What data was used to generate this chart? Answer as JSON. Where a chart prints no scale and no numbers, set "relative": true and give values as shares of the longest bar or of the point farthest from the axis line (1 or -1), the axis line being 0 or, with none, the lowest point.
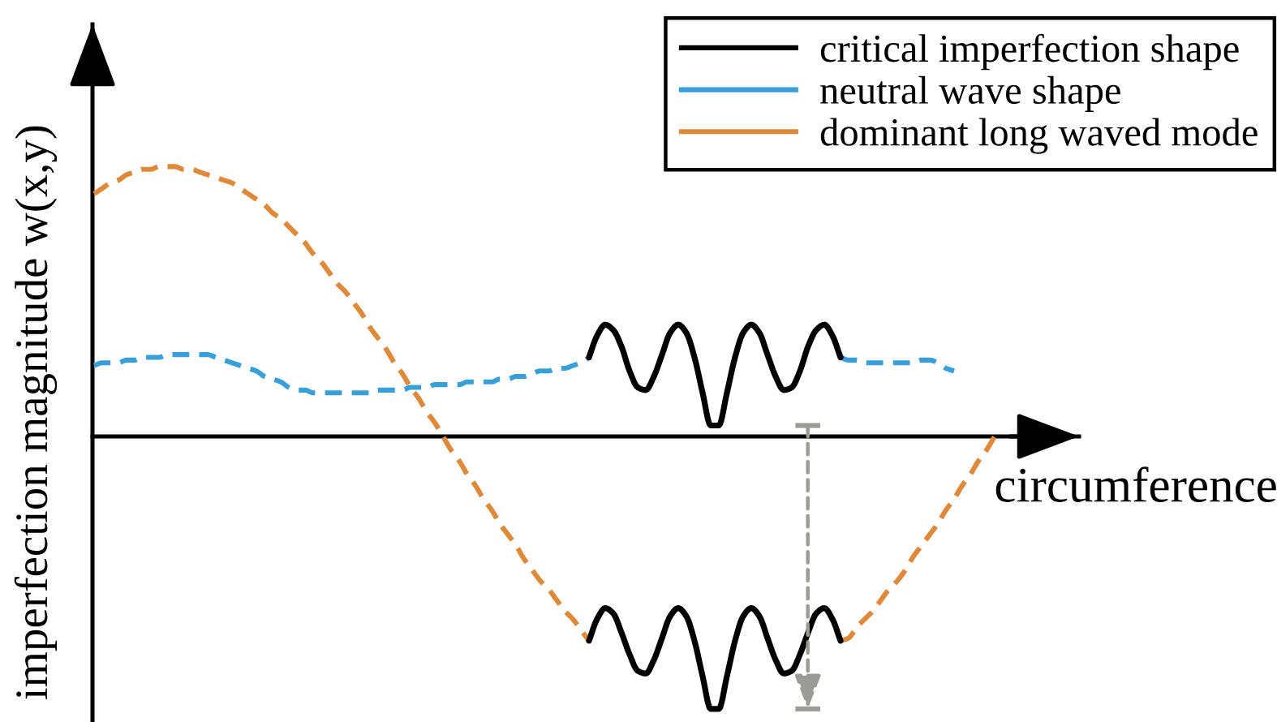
{
  "chart_data": {
    "type": "line",
    "relative": true,
    "legend": "top right",
    "xlabel": "circumference",
    "ylabel": "imperfection magnitude w(x,y)",
    "categories": [
      null,
      null,
      null,
      null,
      null,
      null,
      null,
      null,
      null,
      null,
      null,
      null,
      null,
      null,
      null,
      null,
      null,
      null,
      null,
      null,
      null,
      null,
      null,
      null,
      null,
      null,
      null,
      null,
      null,
      null,
      null,
      null,
      null,
      null,
      null,
      null,
      null,
      null,
      null,
      null,
      null,
      null,
      null,
      null,
      null,
      null,
      null,
      null,
      null,
      null,
      null,
      null,
      null,
      null,
      null,
      null,
      null,
      null,
      null,
      null,
      null,
      null,
      null,
      null,
      null,
      null,
      null,
      null,
      null,
      null,
      null,
      null,
      null,
      null,
      null,
      null,
      null,
      null,
      null,
      null,
      null,
      null,
      null,
      null,
      null,
      null,
      null,
      null,
      null,
      null,
      null,
      null,
      null,
      null,
      null,
      null,
      null,
      null,
      null,
      null,
      null,
      null,
      null,
      null,
      null,
      null,
      null,
      null,
      null,
      null,
      null,
      null
    ],
    "series": [
      {
        "name": "critical imperfection shape",
        "color": "#000000",
        "line_style": "solid",
        "values": [
          null,
          null,
          null,
          null,
          null,
          null,
          null,
          null,
          null,
          null,
          null,
          null,
          null,
          null,
          null,
          null,
          null,
          null,
          null,
          null,
          null,
          null,
          null,
          null,
          null,
          null,
          null,
          null,
          null,
          null,
          null,
          null,
          null,
          null,
          null,
          null,
          null,
          null,
          null,
          null,
          null,
          null,
          null,
          null,
          null,
          null,
          null,
          null,
          null,
          null,
          null,
          null,
          null,
          null,
          null,
          null,
          null,
          null,
          null,
          null,
          null,
          0.29,
          0.37,
          0.41,
          0.39,
          0.33,
          0.24,
          0.18,
          0.17,
          0.22,
          0.3,
          0.38,
          0.41,
          0.38,
          0.29,
          0.16,
          0.04,
          0.04,
          0.16,
          0.29,
          0.38,
          0.41,
          0.38,
          0.3,
          0.22,
          0.17,
          0.18,
          0.24,
          0.33,
          0.39,
          0.41,
          0.37,
          0.29,
          null,
          null,
          null,
          null,
          null,
          null,
          null,
          null,
          null,
          null,
          null,
          null,
          null,
          null,
          null,
          null,
          null,
          null,
          null
        ]
      },
      {
        "color": "#000000",
        "line_style": "solid",
        "values": [
          null,
          null,
          null,
          null,
          null,
          null,
          null,
          null,
          null,
          null,
          null,
          null,
          null,
          null,
          null,
          null,
          null,
          null,
          null,
          null,
          null,
          null,
          null,
          null,
          null,
          null,
          null,
          null,
          null,
          null,
          null,
          null,
          null,
          null,
          null,
          null,
          null,
          null,
          null,
          null,
          null,
          null,
          null,
          null,
          null,
          null,
          null,
          null,
          null,
          null,
          null,
          null,
          null,
          null,
          null,
          null,
          null,
          null,
          null,
          null,
          null,
          -0.75,
          -0.67,
          -0.63,
          -0.65,
          -0.72,
          -0.8,
          -0.86,
          -0.87,
          -0.82,
          -0.74,
          -0.66,
          -0.63,
          -0.66,
          -0.75,
          -0.88,
          -1.0,
          -1.0,
          -0.88,
          -0.75,
          -0.66,
          -0.63,
          -0.66,
          -0.74,
          -0.82,
          -0.87,
          -0.86,
          -0.8,
          -0.72,
          -0.65,
          -0.63,
          -0.67,
          -0.75,
          null,
          null,
          null,
          null,
          null,
          null,
          null,
          null,
          null,
          null,
          null,
          null,
          null,
          null,
          null,
          null,
          null,
          null,
          null
        ]
      },
      {
        "name": "neutral wave shape",
        "color": "#389fd8",
        "line_style": "dashed",
        "values": [
          0.26,
          0.27,
          0.27,
          0.27,
          0.28,
          0.28,
          0.29,
          0.29,
          0.29,
          0.3,
          0.3,
          0.3,
          0.3,
          0.3,
          0.3,
          0.29,
          0.28,
          0.27,
          0.26,
          0.25,
          0.24,
          0.22,
          0.21,
          0.2,
          0.18,
          0.17,
          0.17,
          0.16,
          0.16,
          0.16,
          0.16,
          0.16,
          0.16,
          0.16,
          0.16,
          0.17,
          0.17,
          0.17,
          0.17,
          0.18,
          0.18,
          0.18,
          0.19,
          0.19,
          0.19,
          0.19,
          0.2,
          0.2,
          0.2,
          0.2,
          0.21,
          0.21,
          0.22,
          0.22,
          0.23,
          0.24,
          0.24,
          0.25,
          0.25,
          0.26,
          0.27,
          0.29,
          null,
          null,
          null,
          null,
          null,
          null,
          null,
          null,
          null,
          null,
          null,
          null,
          null,
          null,
          null,
          null,
          null,
          null,
          null,
          null,
          null,
          null,
          null,
          null,
          null,
          null,
          null,
          null,
          null,
          null,
          0.29,
          0.28,
          0.28,
          0.27,
          0.27,
          0.27,
          0.27,
          0.27,
          0.27,
          0.27,
          0.28,
          0.28,
          0.27,
          0.25,
          0.24,
          null,
          null,
          null,
          null,
          null
        ]
      },
      {
        "name": "dominant long waved mode",
        "color": "#df8a3a",
        "line_style": "dashed",
        "values": [
          0.89,
          0.91,
          0.93,
          0.94,
          0.96,
          0.97,
          0.98,
          0.98,
          0.99,
          0.99,
          0.99,
          0.98,
          0.98,
          0.97,
          0.96,
          0.95,
          0.94,
          0.93,
          0.91,
          0.89,
          0.87,
          0.85,
          0.82,
          0.8,
          0.77,
          0.74,
          0.71,
          0.67,
          0.64,
          0.6,
          0.56,
          0.53,
          0.49,
          0.45,
          0.4,
          0.36,
          0.32,
          0.27,
          0.23,
          0.18,
          0.14,
          0.09,
          0.05,
          0.0,
          -0.05,
          -0.09,
          -0.14,
          -0.18,
          -0.23,
          -0.27,
          -0.32,
          -0.36,
          -0.4,
          -0.45,
          -0.49,
          -0.53,
          -0.56,
          -0.6,
          -0.64,
          -0.67,
          -0.71,
          -0.75,
          null,
          null,
          null,
          null,
          null,
          null,
          null,
          null,
          null,
          null,
          null,
          null,
          null,
          null,
          null,
          null,
          null,
          null,
          null,
          null,
          null,
          null,
          null,
          null,
          null,
          null,
          null,
          null,
          null,
          null,
          -0.75,
          -0.74,
          -0.7,
          -0.67,
          -0.64,
          -0.6,
          -0.56,
          -0.53,
          -0.49,
          -0.44,
          -0.4,
          -0.36,
          -0.32,
          -0.27,
          -0.23,
          -0.18,
          -0.14,
          -0.09,
          -0.05,
          0.0
        ]
      }
    ]
  }
}
